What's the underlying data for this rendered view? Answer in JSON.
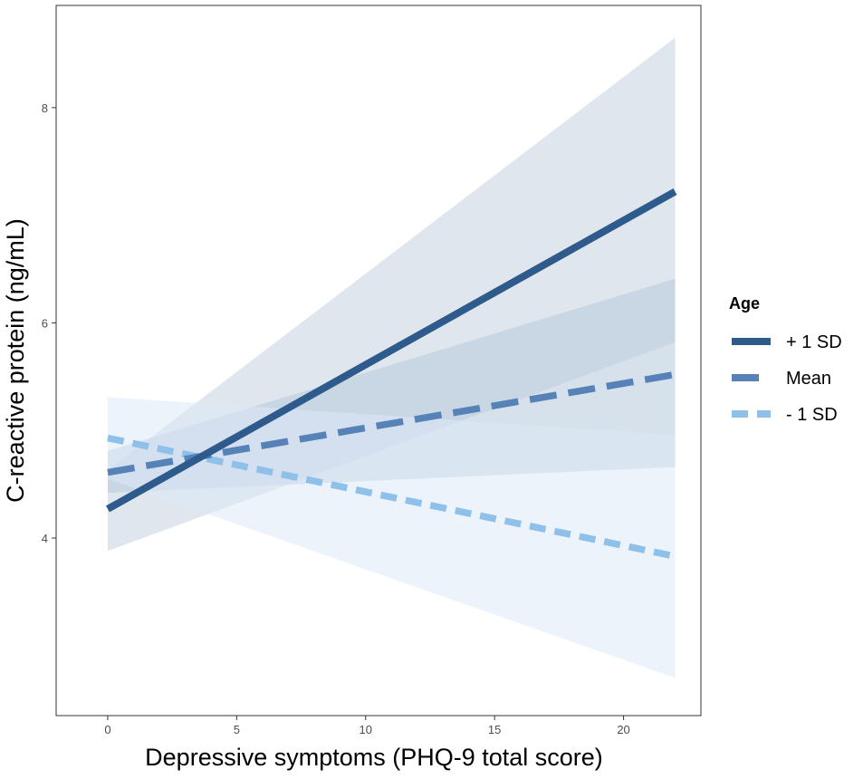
{
  "chart_data": {
    "type": "line",
    "title": "",
    "xlabel": "Depressive symptoms (PHQ-9 total score)",
    "ylabel": "C-reactive protein (ng/mL)",
    "xlim": [
      -2,
      23
    ],
    "ylim": [
      2.35,
      8.95
    ],
    "x_ticks": [
      0,
      5,
      10,
      15,
      20
    ],
    "y_ticks": [
      4,
      6,
      8
    ],
    "x_tick_labels": [
      "0",
      "5",
      "10",
      "15",
      "20"
    ],
    "y_tick_labels": [
      "4",
      "6",
      "8"
    ],
    "legend": {
      "title": "Age",
      "position": "right"
    },
    "series": [
      {
        "name": "+ 1 SD",
        "x": [
          0,
          22
        ],
        "values": [
          4.27,
          7.22
        ],
        "ci_lower": [
          3.88,
          5.82
        ],
        "ci_upper": [
          4.63,
          8.65
        ],
        "color": "#2e5a8c",
        "band_color": "#c5d2e0",
        "dash": "solid"
      },
      {
        "name": "Mean",
        "x": [
          0,
          22
        ],
        "values": [
          4.61,
          5.52
        ],
        "ci_lower": [
          4.42,
          4.66
        ],
        "ci_upper": [
          4.81,
          6.41
        ],
        "color": "#5682b8",
        "band_color": "#b7c9dd",
        "dash": "long"
      },
      {
        "name": "- 1 SD",
        "x": [
          0,
          22
        ],
        "values": [
          4.93,
          3.83
        ],
        "ci_lower": [
          4.55,
          2.7
        ],
        "ci_upper": [
          5.31,
          4.96
        ],
        "color": "#8ec0ea",
        "band_color": "#dceaf8",
        "dash": "short"
      }
    ]
  }
}
